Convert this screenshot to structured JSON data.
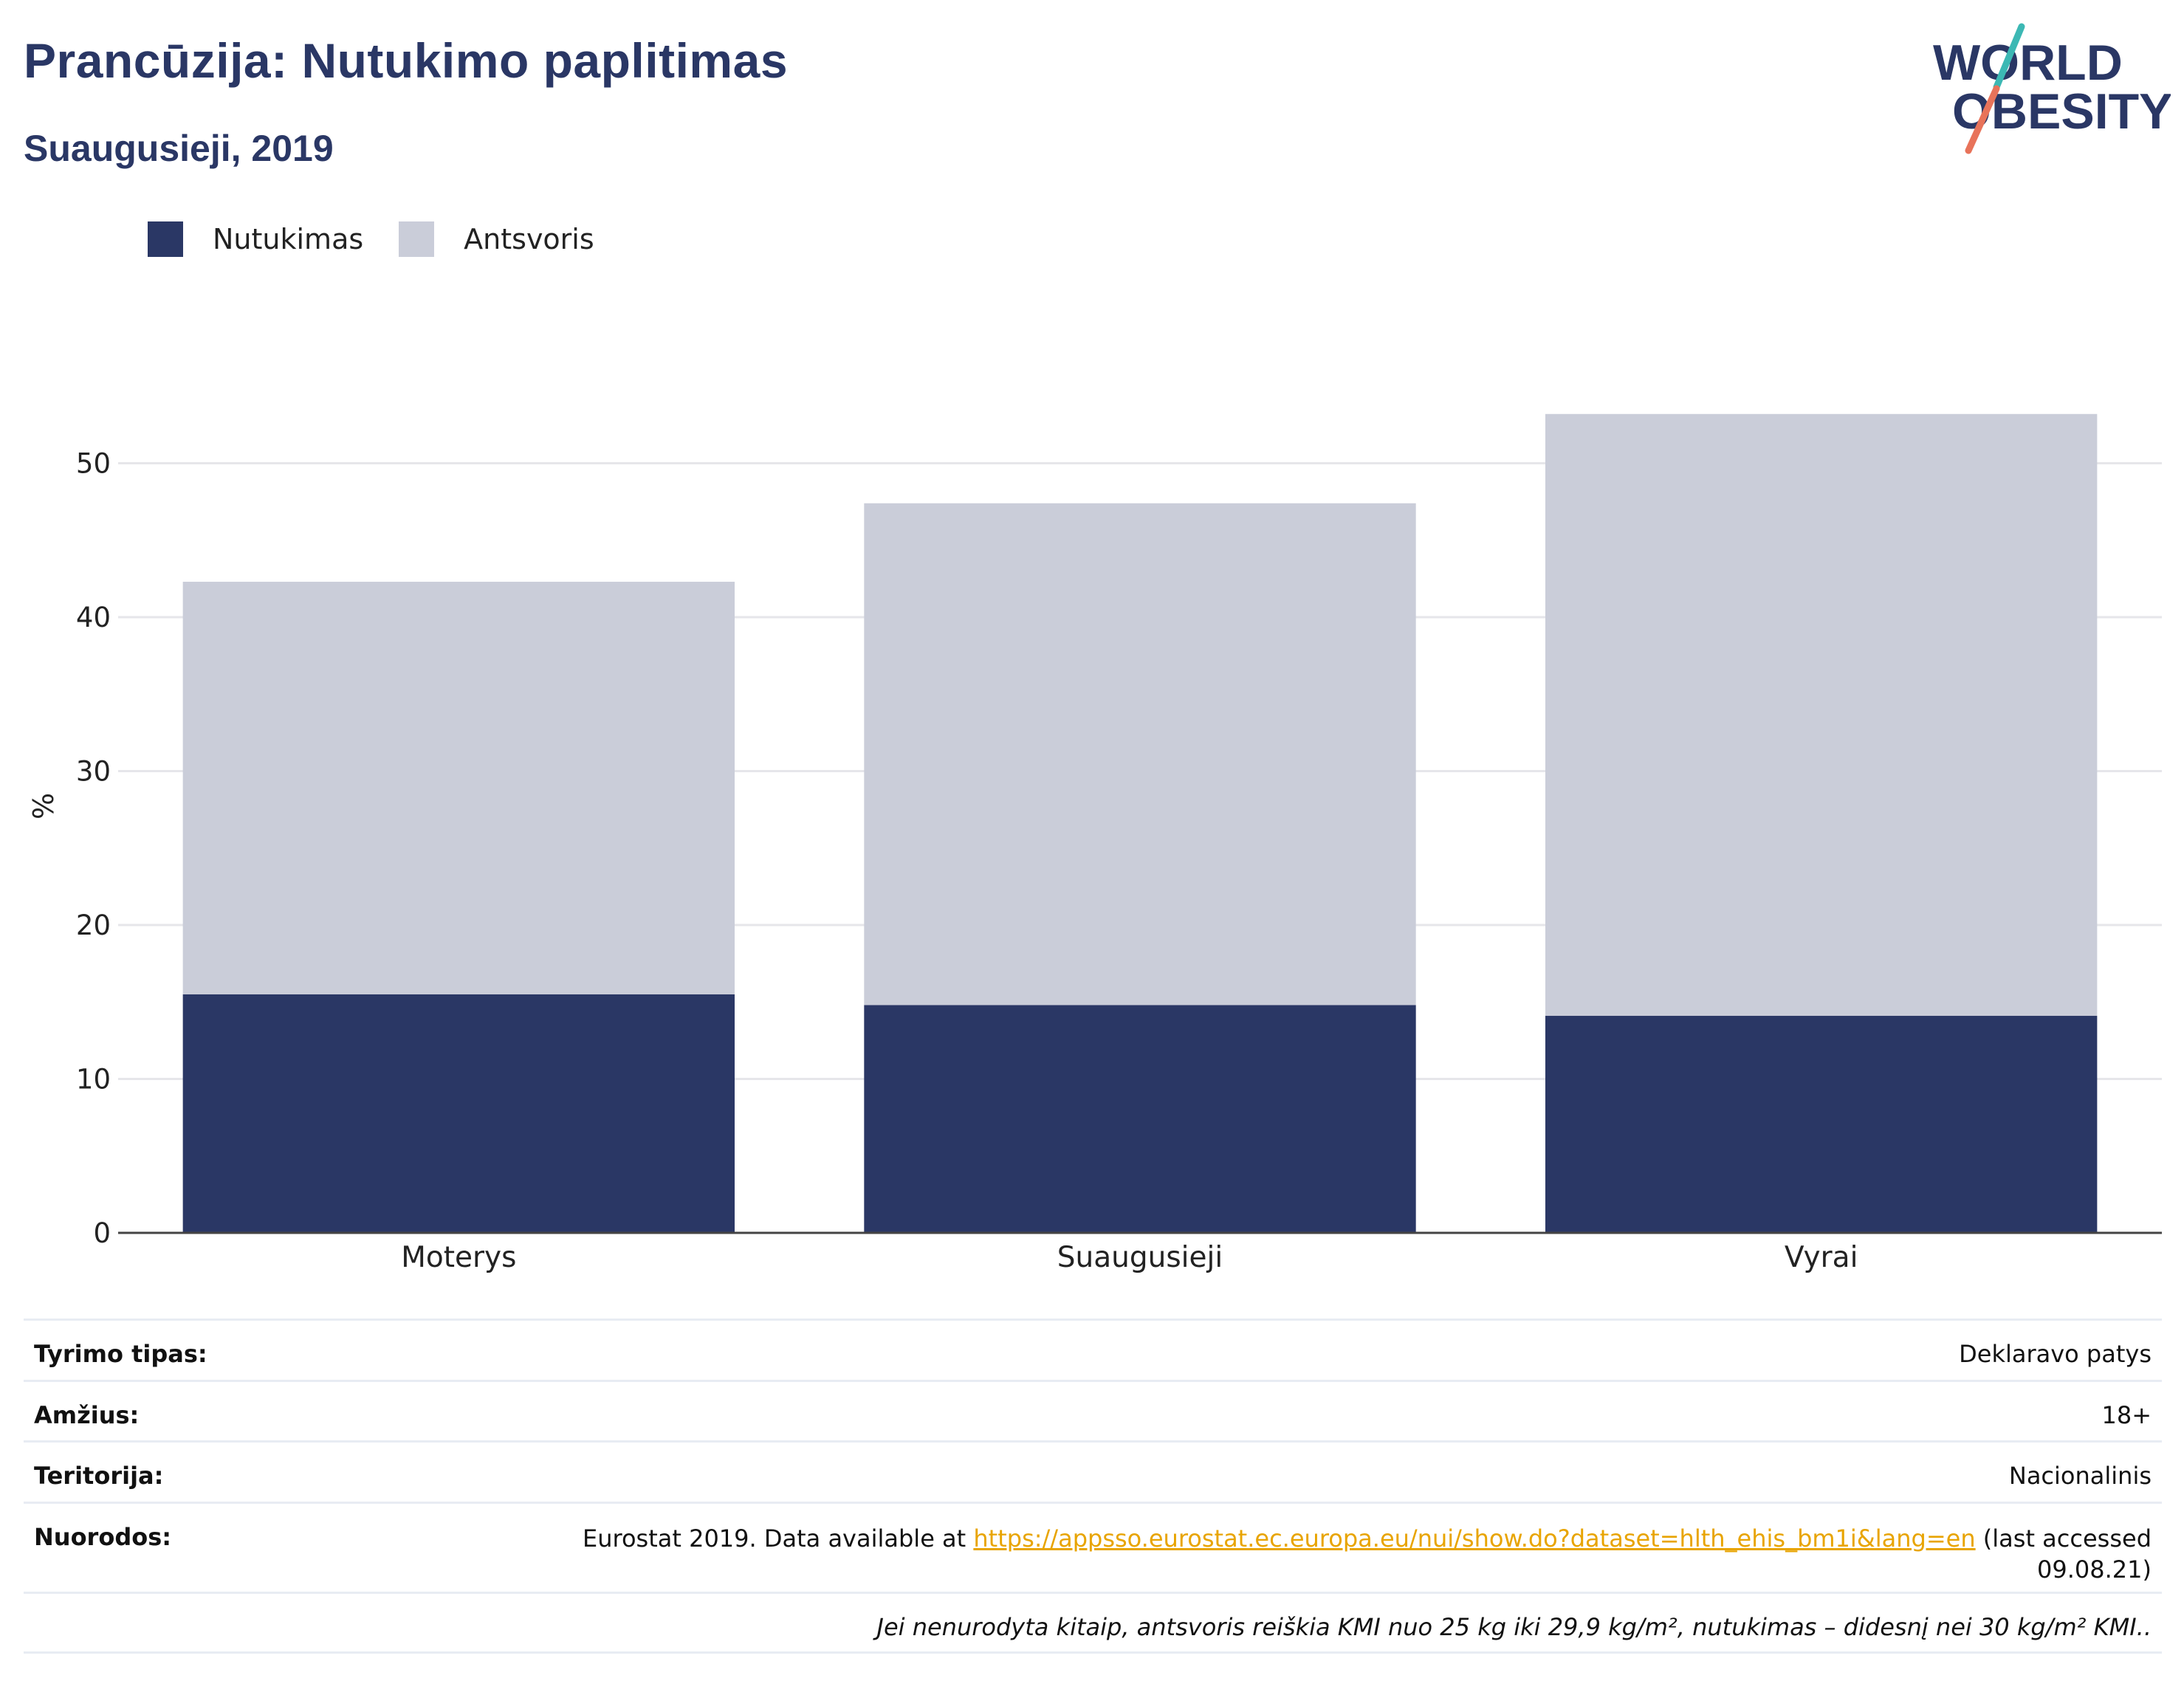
{
  "header": {
    "title": "Prancūzija: Nutukimo paplitimas",
    "subtitle": "Suaugusieji, 2019"
  },
  "logo": {
    "line1": "WORLD",
    "line2": "OBESITY",
    "slash_colors": [
      "#3cb8b4",
      "#e8735a"
    ]
  },
  "legend": [
    {
      "label": "Nutukimas",
      "color": "#2a3765"
    },
    {
      "label": "Antsvoris",
      "color": "#cacdd9"
    }
  ],
  "chart_data": {
    "type": "bar",
    "stacked": true,
    "categories": [
      "Moterys",
      "Suaugusieji",
      "Vyrai"
    ],
    "series": [
      {
        "name": "Nutukimas",
        "values": [
          15.5,
          14.8,
          14.1
        ],
        "color": "#2a3765"
      },
      {
        "name": "Antsvoris",
        "values": [
          26.8,
          32.6,
          39.1
        ],
        "color": "#cacdd9"
      }
    ],
    "ylabel": "%",
    "ylim": [
      0,
      56
    ],
    "yticks": [
      0,
      10,
      20,
      30,
      40,
      50
    ],
    "grid": true,
    "legend_position": "top-left"
  },
  "info": {
    "survey_label": "Tyrimo tipas:",
    "survey_value": "Deklaravo patys",
    "age_label": "Amžius:",
    "age_value": "18+",
    "territory_label": "Teritorija:",
    "territory_value": "Nacionalinis",
    "refs_label": "Nuorodos:",
    "refs_before": "Eurostat 2019. Data available at ",
    "refs_link": "https://appsso.eurostat.ec.europa.eu/nui/show.do?dataset=hlth_ehis_bm1i&lang=en",
    "refs_after": " (last accessed",
    "refs_date": "09.08.21)",
    "note": "Jei nenurodyta kitaip, antsvoris reiškia KMI nuo 25 kg iki 29,9 kg/m², nutukimas – didesnį nei 30 kg/m² KMI.."
  }
}
